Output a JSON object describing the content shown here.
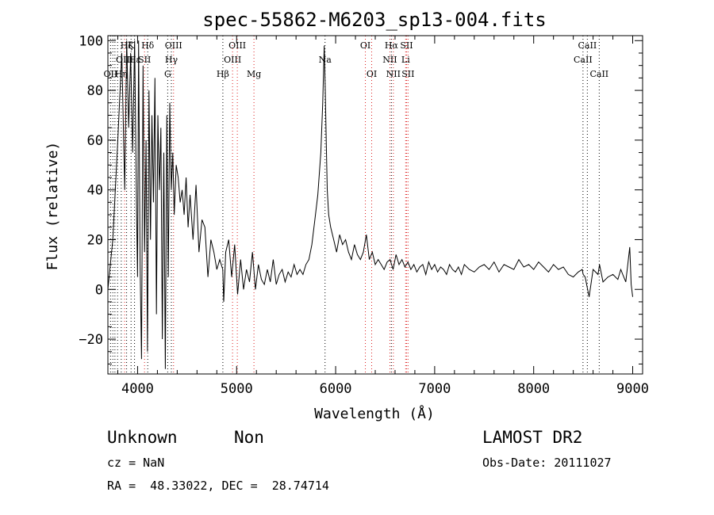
{
  "chart_data": {
    "type": "line",
    "title": "spec-55862-M6203_sp13-004.fits",
    "xlabel": "Wavelength (Å)",
    "ylabel": "Flux (relative)",
    "xlim": [
      3700,
      9100
    ],
    "ylim": [
      -34,
      102
    ],
    "xticks": [
      4000,
      5000,
      6000,
      7000,
      8000,
      9000
    ],
    "yticks": [
      -20,
      0,
      20,
      40,
      60,
      80,
      100
    ],
    "grid": false,
    "series": [
      {
        "color": "#000000",
        "x": [
          3700,
          3750,
          3800,
          3840,
          3870,
          3890,
          3910,
          3930,
          3950,
          3970,
          3990,
          4000,
          4010,
          4025,
          4040,
          4055,
          4070,
          4085,
          4100,
          4115,
          4130,
          4145,
          4160,
          4175,
          4190,
          4205,
          4220,
          4235,
          4250,
          4265,
          4280,
          4295,
          4310,
          4325,
          4340,
          4355,
          4370,
          4390,
          4410,
          4430,
          4450,
          4470,
          4490,
          4510,
          4530,
          4560,
          4590,
          4620,
          4650,
          4680,
          4710,
          4740,
          4770,
          4800,
          4830,
          4860,
          4870,
          4890,
          4920,
          4950,
          4980,
          5010,
          5040,
          5070,
          5100,
          5130,
          5160,
          5190,
          5220,
          5250,
          5280,
          5310,
          5340,
          5370,
          5400,
          5430,
          5460,
          5490,
          5520,
          5550,
          5580,
          5610,
          5640,
          5670,
          5700,
          5730,
          5760,
          5790,
          5820,
          5850,
          5870,
          5885,
          5895,
          5905,
          5915,
          5930,
          5950,
          5980,
          6010,
          6040,
          6070,
          6100,
          6130,
          6160,
          6190,
          6220,
          6250,
          6280,
          6310,
          6340,
          6370,
          6400,
          6430,
          6460,
          6490,
          6520,
          6550,
          6580,
          6610,
          6640,
          6670,
          6700,
          6730,
          6760,
          6790,
          6820,
          6850,
          6880,
          6910,
          6940,
          6970,
          7000,
          7030,
          7060,
          7090,
          7120,
          7150,
          7180,
          7210,
          7240,
          7270,
          7300,
          7350,
          7400,
          7450,
          7500,
          7550,
          7600,
          7650,
          7700,
          7750,
          7800,
          7850,
          7900,
          7950,
          8000,
          8050,
          8100,
          8150,
          8200,
          8250,
          8300,
          8350,
          8400,
          8450,
          8490,
          8500,
          8520,
          8545,
          8560,
          8600,
          8650,
          8665,
          8700,
          8750,
          8800,
          8850,
          8880,
          8900,
          8930,
          8950,
          8970,
          8985,
          9000
        ],
        "y": [
          0,
          20,
          60,
          95,
          40,
          100,
          65,
          95,
          55,
          100,
          30,
          5,
          100,
          10,
          -28,
          90,
          15,
          60,
          -25,
          80,
          20,
          70,
          35,
          85,
          -10,
          70,
          40,
          65,
          -20,
          55,
          -32,
          70,
          5,
          75,
          40,
          55,
          30,
          50,
          45,
          35,
          40,
          30,
          45,
          25,
          38,
          20,
          42,
          15,
          28,
          25,
          5,
          20,
          15,
          8,
          12,
          8,
          -5,
          15,
          20,
          5,
          18,
          -2,
          12,
          0,
          8,
          3,
          15,
          0,
          10,
          4,
          2,
          8,
          3,
          12,
          2,
          6,
          8,
          3,
          7,
          5,
          10,
          6,
          8,
          6,
          10,
          12,
          18,
          28,
          38,
          55,
          75,
          98,
          80,
          60,
          40,
          30,
          25,
          20,
          15,
          22,
          18,
          20,
          15,
          12,
          18,
          14,
          12,
          15,
          22,
          12,
          15,
          10,
          12,
          10,
          8,
          11,
          12,
          8,
          14,
          10,
          12,
          9,
          11,
          8,
          10,
          7,
          9,
          10,
          6,
          11,
          8,
          10,
          7,
          9,
          8,
          6,
          10,
          8,
          7,
          9,
          6,
          10,
          8,
          7,
          9,
          10,
          8,
          11,
          7,
          10,
          9,
          8,
          12,
          9,
          10,
          8,
          11,
          9,
          7,
          10,
          8,
          9,
          6,
          5,
          7,
          8,
          6,
          5,
          0,
          -3,
          8,
          6,
          10,
          3,
          5,
          6,
          4,
          8,
          6,
          3,
          10,
          17,
          2,
          -3
        ]
      }
    ],
    "lines": [
      {
        "x": 3727,
        "color": "black",
        "labels": [
          {
            "text": "OII",
            "row": 2
          }
        ]
      },
      {
        "x": 3750,
        "color": "black",
        "labels": []
      },
      {
        "x": 3771,
        "color": "black",
        "labels": []
      },
      {
        "x": 3798,
        "color": "black",
        "labels": []
      },
      {
        "x": 3835,
        "color": "black",
        "labels": [
          {
            "text": "Hη",
            "row": 2
          }
        ]
      },
      {
        "x": 3869,
        "color": "red",
        "labels": [
          {
            "text": "OIII",
            "row": 1
          }
        ]
      },
      {
        "x": 3889,
        "color": "black",
        "labels": [
          {
            "text": "Hζ",
            "row": 0
          }
        ]
      },
      {
        "x": 3934,
        "color": "black",
        "labels": [
          {
            "text": "K",
            "row": 0
          }
        ]
      },
      {
        "x": 3969,
        "color": "black",
        "labels": [
          {
            "text": "Hε",
            "row": 1
          }
        ]
      },
      {
        "x": 4102,
        "color": "black",
        "labels": [
          {
            "text": "Hδ",
            "row": 0
          }
        ]
      },
      {
        "x": 4070,
        "color": "red",
        "labels": [
          {
            "text": "SII",
            "row": 1
          }
        ]
      },
      {
        "x": 4304,
        "color": "black",
        "labels": [
          {
            "text": "G",
            "row": 2
          }
        ]
      },
      {
        "x": 4341,
        "color": "black",
        "labels": [
          {
            "text": "Hγ",
            "row": 1
          }
        ]
      },
      {
        "x": 4363,
        "color": "red",
        "labels": [
          {
            "text": "OIII",
            "row": 0
          }
        ]
      },
      {
        "x": 4861,
        "color": "black",
        "labels": [
          {
            "text": "Hβ",
            "row": 2
          }
        ]
      },
      {
        "x": 4959,
        "color": "red",
        "labels": [
          {
            "text": "OIII",
            "row": 1
          }
        ]
      },
      {
        "x": 5007,
        "color": "red",
        "labels": [
          {
            "text": "OIII",
            "row": 0
          }
        ]
      },
      {
        "x": 5175,
        "color": "red",
        "labels": [
          {
            "text": "Mg",
            "row": 2
          }
        ]
      },
      {
        "x": 5893,
        "color": "black",
        "labels": [
          {
            "text": "Na",
            "row": 1
          }
        ]
      },
      {
        "x": 6300,
        "color": "red",
        "labels": [
          {
            "text": "OI",
            "row": 0
          }
        ]
      },
      {
        "x": 6364,
        "color": "red",
        "labels": [
          {
            "text": "OI",
            "row": 2
          }
        ]
      },
      {
        "x": 6548,
        "color": "red",
        "labels": [
          {
            "text": "NII",
            "row": 1
          }
        ]
      },
      {
        "x": 6563,
        "color": "black",
        "labels": [
          {
            "text": "Hα",
            "row": 0
          }
        ]
      },
      {
        "x": 6583,
        "color": "red",
        "labels": [
          {
            "text": "NII",
            "row": 2
          }
        ]
      },
      {
        "x": 6707,
        "color": "red",
        "labels": [
          {
            "text": "Li",
            "row": 1
          }
        ]
      },
      {
        "x": 6716,
        "color": "red",
        "labels": [
          {
            "text": "SII",
            "row": 0
          }
        ]
      },
      {
        "x": 6731,
        "color": "red",
        "labels": [
          {
            "text": "SII",
            "row": 2
          }
        ]
      },
      {
        "x": 8498,
        "color": "black",
        "labels": [
          {
            "text": "CaII",
            "row": 1
          }
        ]
      },
      {
        "x": 8542,
        "color": "black",
        "labels": [
          {
            "text": "CaII",
            "row": 0
          }
        ]
      },
      {
        "x": 8662,
        "color": "black",
        "labels": [
          {
            "text": "CaII",
            "row": 2
          }
        ]
      }
    ]
  },
  "footer": {
    "class_text": "Unknown",
    "subclass_text": "Non",
    "survey_text": "LAMOST DR2",
    "cz_text": "cz = NaN",
    "obsdate_text": "Obs-Date: 20111027",
    "radec_text": "RA =  48.33022, DEC =  28.74714"
  }
}
